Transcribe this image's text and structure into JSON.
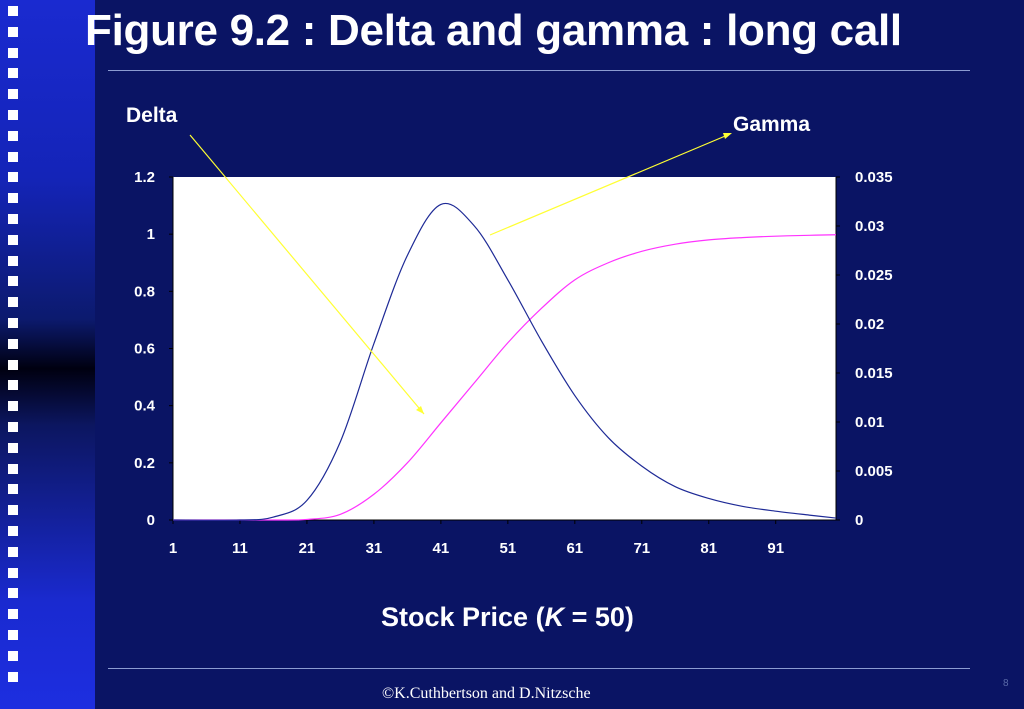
{
  "slide": {
    "title": "Figure 9.2 : Delta and gamma : long call",
    "footer": "©K.Cuthbertson and D.Nitzsche",
    "page_number": "8"
  },
  "annotations": {
    "delta": "Delta",
    "gamma": "Gamma"
  },
  "xaxis_title": {
    "prefix": "Stock Price (",
    "var": "K",
    "suffix": " = 50)"
  },
  "colors": {
    "background": "#0a1464",
    "sidebar": "#1a2ad0",
    "delta_line": "#ff33ff",
    "gamma_line": "#1e2a96",
    "arrows": "#ffff33",
    "plot_area": "#ffffff"
  },
  "chart_data": {
    "type": "line",
    "xlabel": "Stock Price (K = 50)",
    "x_ticks": [
      1,
      11,
      21,
      31,
      41,
      51,
      61,
      71,
      81,
      91
    ],
    "xlim": [
      1,
      100
    ],
    "y_left": {
      "ticks": [
        "0",
        "0.2",
        "0.4",
        "0.6",
        "0.8",
        "1",
        "1.2"
      ],
      "ylim": [
        0,
        1.2
      ]
    },
    "y_right": {
      "ticks": [
        "0",
        "0.005",
        "0.01",
        "0.015",
        "0.02",
        "0.025",
        "0.03",
        "0.035"
      ],
      "ylim": [
        0,
        0.035
      ]
    },
    "grid": false,
    "x": [
      1,
      11,
      16,
      21,
      26,
      31,
      36,
      41,
      46,
      51,
      56,
      61,
      66,
      71,
      76,
      81,
      86,
      91,
      96,
      100
    ],
    "series": [
      {
        "name": "Delta",
        "axis": "left",
        "color": "#ff33ff",
        "values": [
          0,
          0,
          0,
          0.002,
          0.02,
          0.09,
          0.2,
          0.34,
          0.48,
          0.62,
          0.74,
          0.84,
          0.9,
          0.94,
          0.965,
          0.98,
          0.988,
          0.993,
          0.996,
          0.998
        ]
      },
      {
        "name": "Gamma",
        "axis": "right",
        "color": "#1e2a96",
        "values": [
          0,
          0,
          0.0003,
          0.002,
          0.008,
          0.018,
          0.027,
          0.0322,
          0.03,
          0.0245,
          0.0183,
          0.0127,
          0.0084,
          0.0055,
          0.0034,
          0.0022,
          0.0014,
          0.0009,
          0.0005,
          0.0002
        ]
      }
    ]
  }
}
